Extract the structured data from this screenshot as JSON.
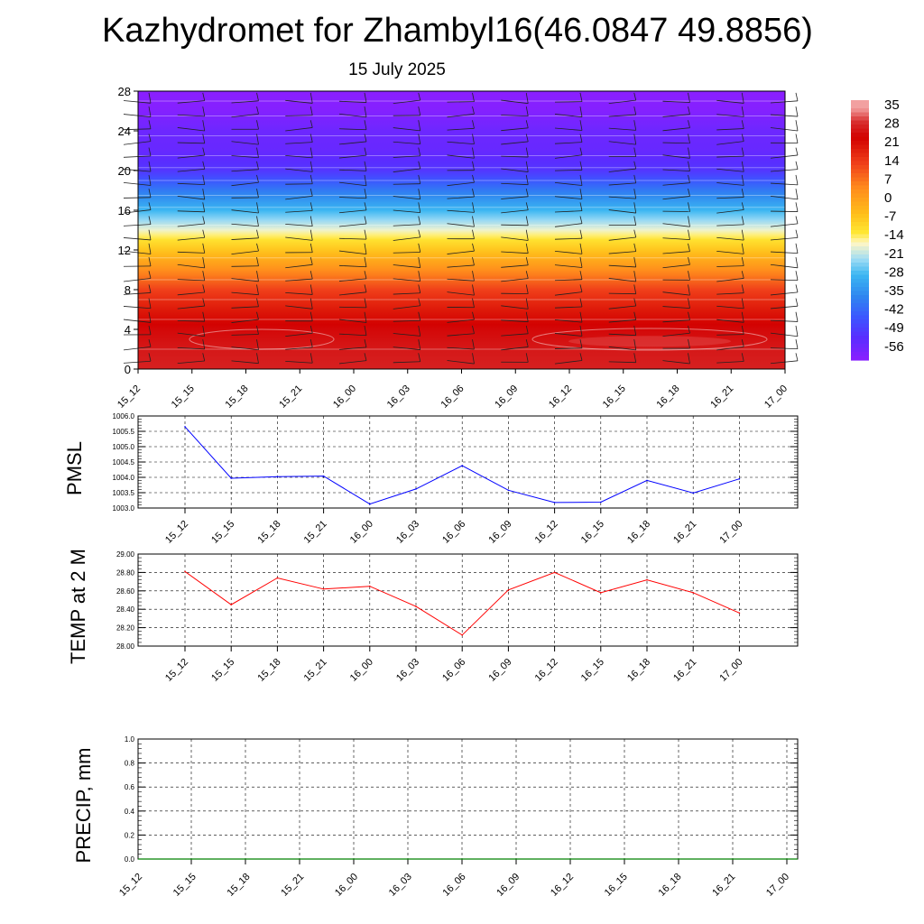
{
  "title": "Kazhydromet for Zhambyl16(46.0847 49.8856)",
  "subtitle": "15 July 2025",
  "time_labels": [
    "15_12",
    "15_15",
    "15_18",
    "15_21",
    "16_00",
    "16_03",
    "16_06",
    "16_09",
    "16_12",
    "16_15",
    "16_18",
    "16_21",
    "17_00"
  ],
  "colors": {
    "pmsl_line": "#0000ff",
    "temp_line": "#ff0000",
    "precip_line": "#008000",
    "grid": "#000000"
  },
  "chart_data": [
    {
      "type": "heatmap",
      "name": "vertical-profile",
      "ylim": [
        0,
        28
      ],
      "yticks": [
        0,
        4,
        8,
        12,
        16,
        20,
        24,
        28
      ],
      "xticks": [
        "15_12",
        "15_15",
        "15_18",
        "15_21",
        "16_00",
        "16_03",
        "16_06",
        "16_09",
        "16_12",
        "16_15",
        "16_18",
        "16_21",
        "17_00"
      ],
      "colorbar": {
        "labels": [
          "35",
          "28",
          "21",
          "14",
          "7",
          "0",
          "-7",
          "-14",
          "-21",
          "-28",
          "-35",
          "-42",
          "-49",
          "-56"
        ],
        "stops": [
          {
            "v": -60,
            "c": "#8a1fff"
          },
          {
            "v": -52,
            "c": "#5b2cff"
          },
          {
            "v": -44,
            "c": "#3c56ff"
          },
          {
            "v": -36,
            "c": "#2f86f0"
          },
          {
            "v": -28,
            "c": "#3bb6f2"
          },
          {
            "v": -22,
            "c": "#9fdcf4"
          },
          {
            "v": -16,
            "c": "#fff7c6"
          },
          {
            "v": -12,
            "c": "#ffe733"
          },
          {
            "v": -5,
            "c": "#ffbf1a"
          },
          {
            "v": 5,
            "c": "#ff8a1c"
          },
          {
            "v": 14,
            "c": "#f0401a"
          },
          {
            "v": 24,
            "c": "#d20000"
          },
          {
            "v": 30,
            "c": "#d83030"
          },
          {
            "v": 35,
            "c": "#f2a0a0"
          }
        ]
      },
      "profile": [
        {
          "h": 0,
          "v": 28
        },
        {
          "h": 2,
          "v": 27
        },
        {
          "h": 4,
          "v": 25
        },
        {
          "h": 6,
          "v": 20
        },
        {
          "h": 8,
          "v": 14
        },
        {
          "h": 10,
          "v": 4
        },
        {
          "h": 12,
          "v": -6
        },
        {
          "h": 13.2,
          "v": -12
        },
        {
          "h": 14,
          "v": -17
        },
        {
          "h": 16,
          "v": -28
        },
        {
          "h": 18,
          "v": -38
        },
        {
          "h": 20,
          "v": -50
        },
        {
          "h": 22,
          "v": -54
        },
        {
          "h": 24,
          "v": -55
        },
        {
          "h": 26,
          "v": -59
        },
        {
          "h": 28,
          "v": -60
        }
      ]
    },
    {
      "type": "line",
      "name": "pmsl",
      "ylabel": "PMSL",
      "x": [
        "15_12",
        "15_15",
        "15_18",
        "15_21",
        "16_00",
        "16_03",
        "16_06",
        "16_09",
        "16_12",
        "16_15",
        "16_18",
        "16_21",
        "17_00"
      ],
      "values": [
        1005.65,
        1003.97,
        1004.02,
        1004.04,
        1003.13,
        1003.62,
        1004.38,
        1003.58,
        1003.18,
        1003.19,
        1003.9,
        1003.49,
        1003.95
      ],
      "ylim": [
        1003.0,
        1006.0
      ],
      "yticks": [
        "1003.0",
        "1003.5",
        "1004.0",
        "1004.5",
        "1005.0",
        "1005.5",
        "1006.0"
      ]
    },
    {
      "type": "line",
      "name": "temp",
      "ylabel": "TEMP at 2 M",
      "x": [
        "15_12",
        "15_15",
        "15_18",
        "15_21",
        "16_00",
        "16_03",
        "16_06",
        "16_09",
        "16_12",
        "16_15",
        "16_18",
        "16_21",
        "17_00"
      ],
      "values": [
        28.81,
        28.45,
        28.74,
        28.62,
        28.65,
        28.43,
        28.12,
        28.61,
        28.8,
        28.58,
        28.72,
        28.58,
        28.36
      ],
      "ylim": [
        28.0,
        29.0
      ],
      "yticks": [
        "28.00",
        "28.20",
        "28.40",
        "28.60",
        "28.80",
        "29.00"
      ]
    },
    {
      "type": "line",
      "name": "precip",
      "ylabel": "PRECIP, mm",
      "x": [
        "15_12",
        "15_15",
        "15_18",
        "15_21",
        "16_00",
        "16_03",
        "16_06",
        "16_09",
        "16_12",
        "16_15",
        "16_18",
        "16_21",
        "17_00"
      ],
      "values": [
        0,
        0,
        0,
        0,
        0,
        0,
        0,
        0,
        0,
        0,
        0,
        0,
        0
      ],
      "ylim": [
        0.0,
        1.0
      ],
      "yticks": [
        "0.0",
        "0.2",
        "0.4",
        "0.6",
        "0.8",
        "1.0"
      ]
    }
  ]
}
